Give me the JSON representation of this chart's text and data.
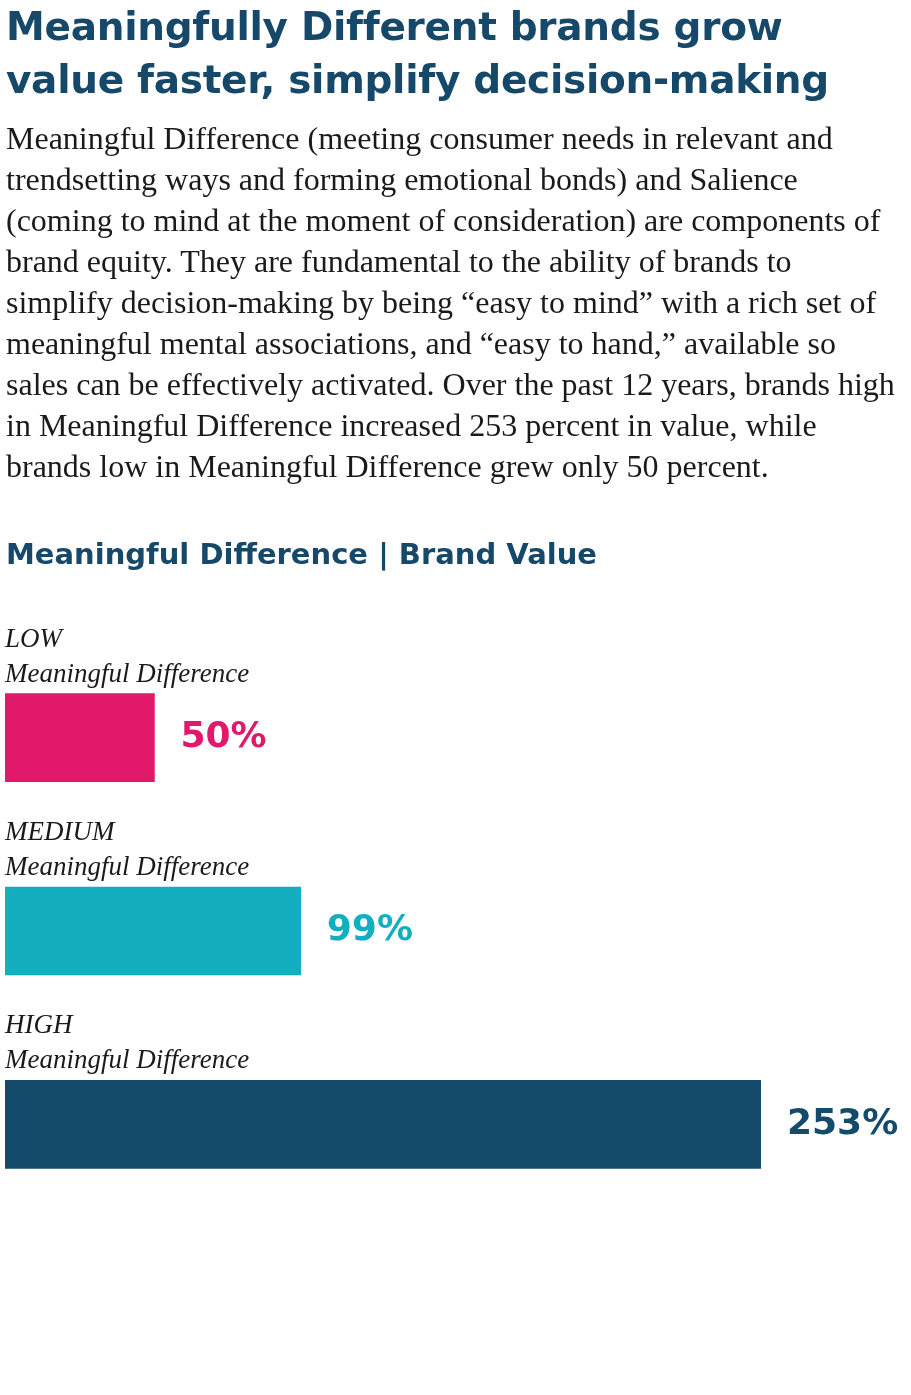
{
  "chart_data": {
    "type": "bar",
    "orientation": "horizontal",
    "title": "Meaningfully Different brands grow value faster, simplify decision-making",
    "subtitle": "Meaningful Difference (meeting consumer needs in relevant and trendsetting ways and forming emotional bonds) and Salience (coming to mind at the moment of consideration) are components of brand equity. They are fundamental to the ability of brands to simplify decision-making by being “easy to mind” with a rich set of meaningful mental associations, and “easy to hand,” available so sales can be effectively activated. Over the past 12 years, brands high in Meaningful Difference increased 253 percent in value, while brands low in Meaningful Difference grew only 50 percent.",
    "annotations": [
      "Meaningful Difference | Brand Value"
    ],
    "categories": [
      "LOW\nMeaningful Difference",
      "MEDIUM\nMeaningful Difference",
      "HIGH\nMeaningful Difference"
    ],
    "values": [
      50,
      99,
      253
    ],
    "colors": [
      "#e0196a",
      "#13aebf",
      "#144a6a"
    ],
    "value_labels": [
      "50%",
      "99%",
      "253%"
    ]
  }
}
